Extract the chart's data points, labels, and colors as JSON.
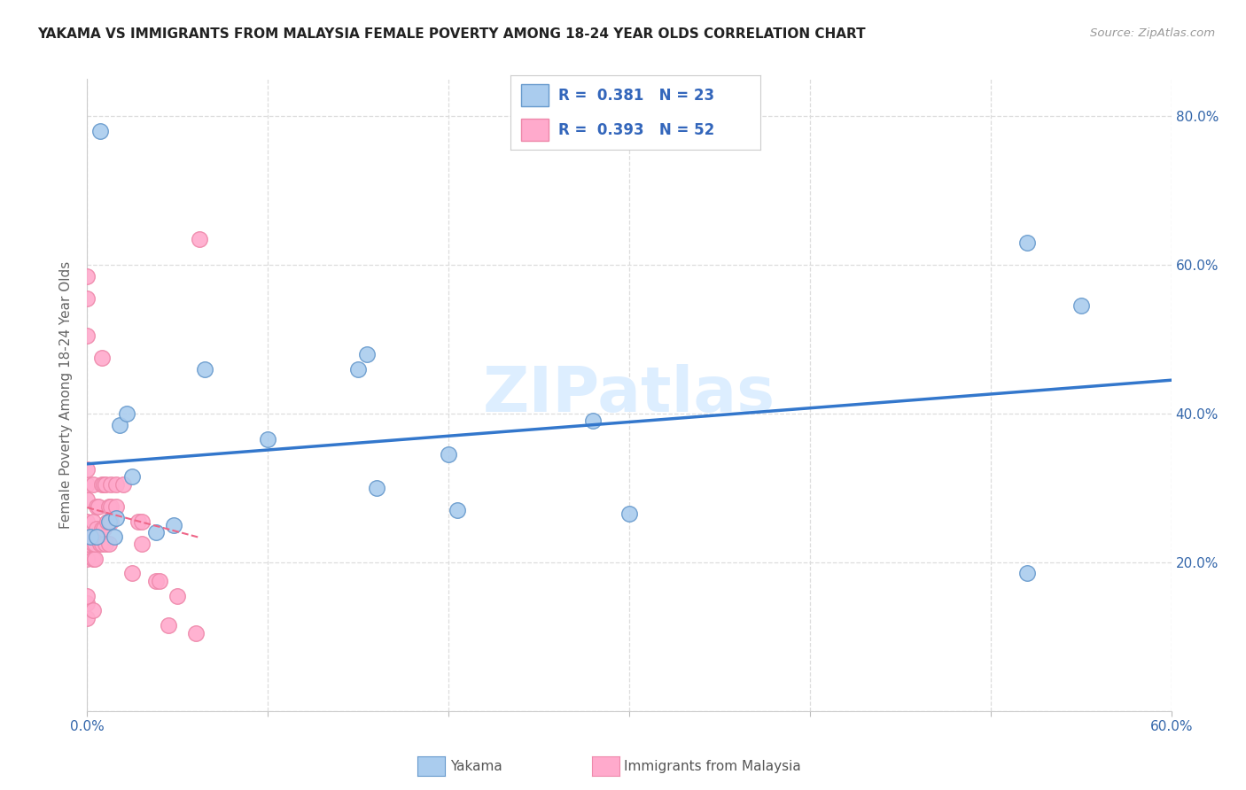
{
  "title": "YAKAMA VS IMMIGRANTS FROM MALAYSIA FEMALE POVERTY AMONG 18-24 YEAR OLDS CORRELATION CHART",
  "source": "Source: ZipAtlas.com",
  "ylabel": "Female Poverty Among 18-24 Year Olds",
  "xmin": 0.0,
  "xmax": 0.6,
  "ymin": 0.0,
  "ymax": 0.85,
  "xtick_positions": [
    0.0,
    0.1,
    0.2,
    0.3,
    0.4,
    0.5,
    0.6
  ],
  "xtick_labels": [
    "0.0%",
    "",
    "",
    "",
    "",
    "",
    "60.0%"
  ],
  "ytick_positions": [
    0.0,
    0.2,
    0.4,
    0.6,
    0.8
  ],
  "ytick_labels": [
    "",
    "20.0%",
    "40.0%",
    "60.0%",
    "80.0%"
  ],
  "yakama_color": "#aaccee",
  "yakama_edge": "#6699cc",
  "malaysia_color": "#ffaacc",
  "malaysia_edge": "#ee88aa",
  "trend_yakama_color": "#3377cc",
  "trend_malaysia_color": "#ee6688",
  "yakama_R": 0.381,
  "yakama_N": 23,
  "malaysia_R": 0.393,
  "malaysia_N": 52,
  "legend_text_color": "#3366bb",
  "watermark": "ZIPatlas",
  "watermark_color": "#ddeeff",
  "grid_color": "#dddddd",
  "yakama_x": [
    0.002,
    0.005,
    0.007,
    0.012,
    0.015,
    0.016,
    0.018,
    0.022,
    0.025,
    0.038,
    0.048,
    0.065,
    0.1,
    0.155,
    0.2,
    0.205,
    0.15,
    0.28,
    0.3,
    0.52,
    0.55,
    0.52,
    0.16
  ],
  "yakama_y": [
    0.235,
    0.235,
    0.78,
    0.255,
    0.235,
    0.26,
    0.385,
    0.4,
    0.315,
    0.24,
    0.25,
    0.46,
    0.365,
    0.48,
    0.345,
    0.27,
    0.46,
    0.39,
    0.265,
    0.63,
    0.545,
    0.185,
    0.3
  ],
  "malaysia_x": [
    0.0,
    0.0,
    0.0,
    0.0,
    0.0,
    0.0,
    0.0,
    0.0,
    0.0,
    0.0,
    0.0,
    0.0,
    0.003,
    0.003,
    0.003,
    0.003,
    0.003,
    0.003,
    0.004,
    0.004,
    0.005,
    0.005,
    0.006,
    0.006,
    0.007,
    0.008,
    0.008,
    0.008,
    0.008,
    0.009,
    0.009,
    0.01,
    0.01,
    0.011,
    0.012,
    0.012,
    0.013,
    0.013,
    0.013,
    0.016,
    0.016,
    0.02,
    0.025,
    0.028,
    0.03,
    0.03,
    0.038,
    0.04,
    0.045,
    0.05,
    0.06,
    0.062
  ],
  "malaysia_y": [
    0.125,
    0.145,
    0.155,
    0.205,
    0.225,
    0.255,
    0.285,
    0.305,
    0.325,
    0.505,
    0.555,
    0.585,
    0.135,
    0.205,
    0.225,
    0.235,
    0.255,
    0.305,
    0.205,
    0.225,
    0.245,
    0.275,
    0.235,
    0.275,
    0.225,
    0.225,
    0.245,
    0.305,
    0.475,
    0.245,
    0.305,
    0.225,
    0.305,
    0.255,
    0.275,
    0.225,
    0.255,
    0.275,
    0.305,
    0.275,
    0.305,
    0.305,
    0.185,
    0.255,
    0.225,
    0.255,
    0.175,
    0.175,
    0.115,
    0.155,
    0.105,
    0.635
  ]
}
